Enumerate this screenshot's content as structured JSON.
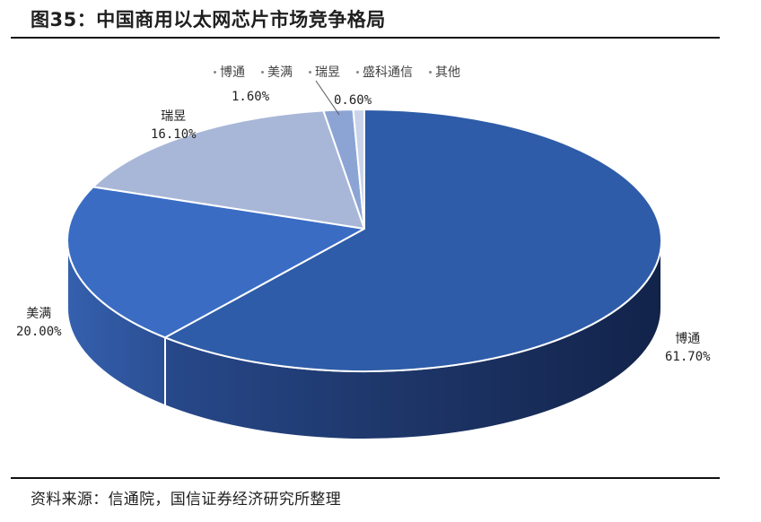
{
  "figure": {
    "title": "图35：中国商用以太网芯片市场竞争格局",
    "source": "资料来源：信通院，国信证券经济研究所整理"
  },
  "legend": {
    "items": [
      {
        "label": "博通",
        "color": "#2E5CA8"
      },
      {
        "label": "美满",
        "color": "#3A6CC4"
      },
      {
        "label": "瑞昱",
        "color": "#A8B7D8"
      },
      {
        "label": "盛科通信",
        "color": "#8CA4D4"
      },
      {
        "label": "其他",
        "color": "#C9D4EA"
      }
    ]
  },
  "labels": {
    "broadcom": {
      "name": "博通",
      "value": "61.70%"
    },
    "marvell": {
      "name": "美满",
      "value": "20.00%"
    },
    "realtek": {
      "name": "瑞昱",
      "value": "16.10%"
    },
    "centec": {
      "name": "盛科",
      "value": "1.60%"
    },
    "others": {
      "name": "其他",
      "value": "0.60%"
    }
  },
  "chart_data": {
    "type": "pie",
    "title": "图35：中国商用以太网芯片市场竞争格局",
    "categories": [
      "博通",
      "美满",
      "瑞昱",
      "盛科通信",
      "其他"
    ],
    "values": [
      61.7,
      20.0,
      16.1,
      1.6,
      0.6
    ],
    "value_labels": [
      "61.70%",
      "20.00%",
      "16.10%",
      "1.60%",
      "0.60%"
    ],
    "colors": [
      "#2E5CA8",
      "#3A6CC4",
      "#A8B7D8",
      "#8CA4D4",
      "#C9D4EA"
    ],
    "style": "3d",
    "legend_position": "top",
    "start_angle": "12 o'clock, clockwise",
    "source": "资料来源：信通院，国信证券经济研究所整理"
  }
}
